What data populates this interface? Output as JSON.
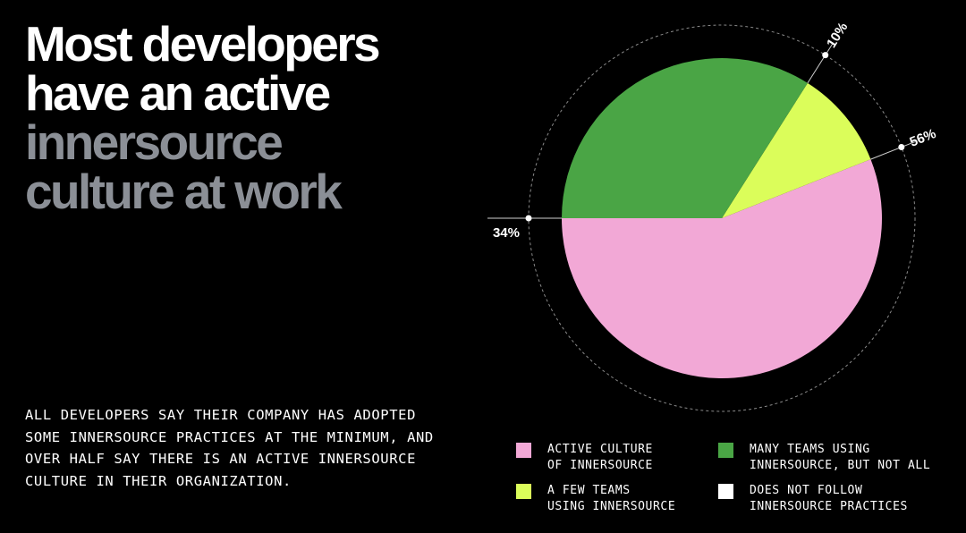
{
  "headline": {
    "line1": "Most developers",
    "line2": "have an active",
    "line3": "innersource",
    "line4": "culture at work"
  },
  "summary": "ALL DEVELOPERS SAY THEIR COMPANY HAS ADOPTED SOME INNERSOURCE PRACTICES AT THE MINIMUM, AND OVER HALF SAY THERE IS AN ACTIVE INNERSOURCE CULTURE IN THEIR ORGANIZATION.",
  "colors": {
    "background": "#000000",
    "headline_white": "#ffffff",
    "headline_gray": "#8b8f96",
    "pink": "#f2a8d6",
    "green": "#4aa545",
    "lime": "#dbfd5a",
    "white": "#ffffff"
  },
  "chart_data": {
    "type": "pie",
    "title": "",
    "start_angle_deg": 180,
    "direction": "counterclockwise",
    "series": [
      {
        "name": "ACTIVE CULTURE OF INNERSOURCE",
        "value": 56,
        "label": "56%",
        "color": "#f2a8d6"
      },
      {
        "name": "A FEW TEAMS USING INNERSOURCE",
        "value": 10,
        "label": "10%",
        "color": "#dbfd5a"
      },
      {
        "name": "MANY TEAMS USING INNERSOURCE, BUT NOT ALL",
        "value": 34,
        "label": "34%",
        "color": "#4aa545"
      },
      {
        "name": "DOES NOT FOLLOW INNERSOURCE PRACTICES",
        "value": 0,
        "label": "",
        "color": "#ffffff"
      }
    ],
    "legend": {
      "position": "bottom",
      "entries": [
        {
          "line1": "ACTIVE CULTURE",
          "line2": "OF INNERSOURCE",
          "color": "#f2a8d6"
        },
        {
          "line1": "MANY TEAMS USING",
          "line2": "INNERSOURCE, BUT NOT ALL",
          "color": "#4aa545"
        },
        {
          "line1": "A FEW TEAMS",
          "line2": "USING INNERSOURCE",
          "color": "#dbfd5a"
        },
        {
          "line1": "DOES NOT FOLLOW",
          "line2": "INNERSOURCE PRACTICES",
          "color": "#ffffff"
        }
      ]
    }
  }
}
